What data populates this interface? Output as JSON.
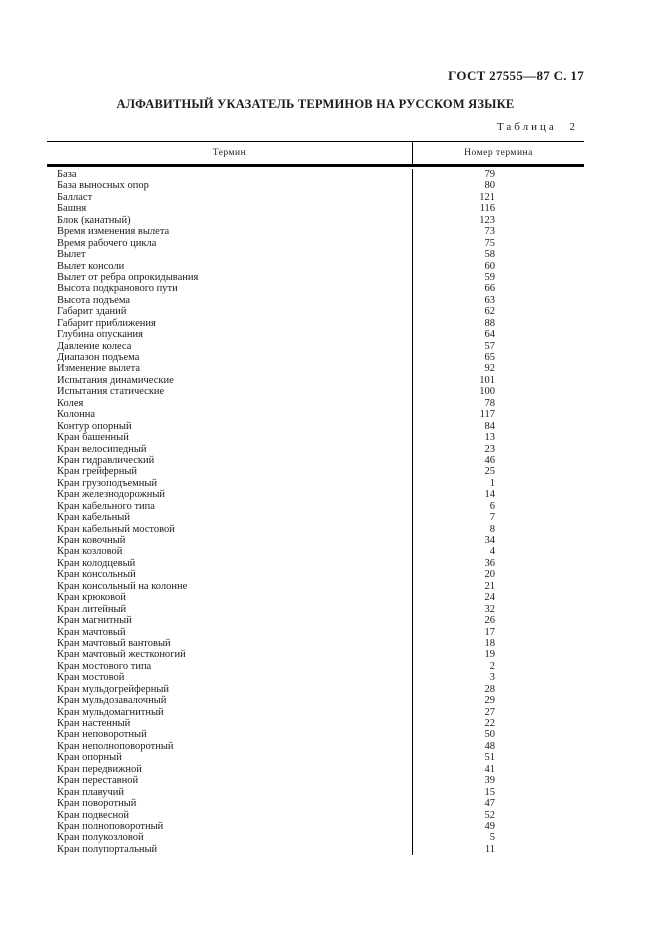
{
  "page": {
    "header": "ГОСТ 27555—87 С. 17",
    "title": "АЛФАВИТНЫЙ УКАЗАТЕЛЬ ТЕРМИНОВ НА РУССКОМ ЯЗЫКЕ",
    "table_label": "Таблица 2"
  },
  "table": {
    "columns": [
      "Термин",
      "Номер термина"
    ],
    "rows": [
      {
        "term": "База",
        "num": "79"
      },
      {
        "term": "База выносных опор",
        "num": "80"
      },
      {
        "term": "Балласт",
        "num": "121"
      },
      {
        "term": "Башня",
        "num": "116"
      },
      {
        "term": "Блок (канатный)",
        "num": "123"
      },
      {
        "term": "Время изменения вылета",
        "num": "73"
      },
      {
        "term": "Время рабочего цикла",
        "num": "75"
      },
      {
        "term": "Вылет",
        "num": "58"
      },
      {
        "term": "Вылет консоли",
        "num": "60"
      },
      {
        "term": "Вылет от ребра опрокидывания",
        "num": "59"
      },
      {
        "term": "Высота подкранового пути",
        "num": "66"
      },
      {
        "term": "Высота подъема",
        "num": "63"
      },
      {
        "term": "Габарит зданий",
        "num": "62"
      },
      {
        "term": "Габарит приближения",
        "num": "88"
      },
      {
        "term": "Глубина опускания",
        "num": "64"
      },
      {
        "term": "Давление колеса",
        "num": "57"
      },
      {
        "term": "Диапазон подъема",
        "num": "65"
      },
      {
        "term": "Изменение вылета",
        "num": "92"
      },
      {
        "term": "Испытания динамические",
        "num": "101"
      },
      {
        "term": "Испытания статические",
        "num": "100"
      },
      {
        "term": "Колея",
        "num": "78"
      },
      {
        "term": "Колонна",
        "num": "117"
      },
      {
        "term": "Контур опорный",
        "num": "84"
      },
      {
        "term": "Кран башенный",
        "num": "13"
      },
      {
        "term": "Кран велосипедный",
        "num": "23"
      },
      {
        "term": "Кран гидравлический",
        "num": "46"
      },
      {
        "term": "Кран грейферный",
        "num": "25"
      },
      {
        "term": "Кран грузоподъемный",
        "num": "1"
      },
      {
        "term": "Кран железнодорожный",
        "num": "14"
      },
      {
        "term": "Кран кабельного типа",
        "num": "6"
      },
      {
        "term": "Кран кабельный",
        "num": "7"
      },
      {
        "term": "Кран кабельный мостовой",
        "num": "8"
      },
      {
        "term": "Кран ковочный",
        "num": "34"
      },
      {
        "term": "Кран козловой",
        "num": "4"
      },
      {
        "term": "Кран колодцевый",
        "num": "36"
      },
      {
        "term": "Кран консольный",
        "num": "20"
      },
      {
        "term": "Кран консольный на колонне",
        "num": "21"
      },
      {
        "term": "Кран крюковой",
        "num": "24"
      },
      {
        "term": "Кран литейный",
        "num": "32"
      },
      {
        "term": "Кран магнитный",
        "num": "26"
      },
      {
        "term": "Кран мачтовый",
        "num": "17"
      },
      {
        "term": "Кран мачтовый вантовый",
        "num": "18"
      },
      {
        "term": "Кран мачтовый жестконогий",
        "num": "19"
      },
      {
        "term": "Кран мостового типа",
        "num": "2"
      },
      {
        "term": "Кран мостовой",
        "num": "3"
      },
      {
        "term": "Кран мульдогрейферный",
        "num": "28"
      },
      {
        "term": "Кран мульдозавалочный",
        "num": "29"
      },
      {
        "term": "Кран мульдомагнитный",
        "num": "27"
      },
      {
        "term": "Кран настенный",
        "num": "22"
      },
      {
        "term": "Кран неповоротный",
        "num": "50"
      },
      {
        "term": "Кран неполноповоротный",
        "num": "48"
      },
      {
        "term": "Кран опорный",
        "num": "51"
      },
      {
        "term": "Кран передвижной",
        "num": "41"
      },
      {
        "term": "Кран переставной",
        "num": "39"
      },
      {
        "term": "Кран плавучий",
        "num": "15"
      },
      {
        "term": "Кран поворотный",
        "num": "47"
      },
      {
        "term": "Кран подвесной",
        "num": "52"
      },
      {
        "term": "Кран полноповоротный",
        "num": "49"
      },
      {
        "term": "Кран полукозловой",
        "num": "5"
      },
      {
        "term": "Кран полупортальный",
        "num": "11"
      }
    ]
  }
}
